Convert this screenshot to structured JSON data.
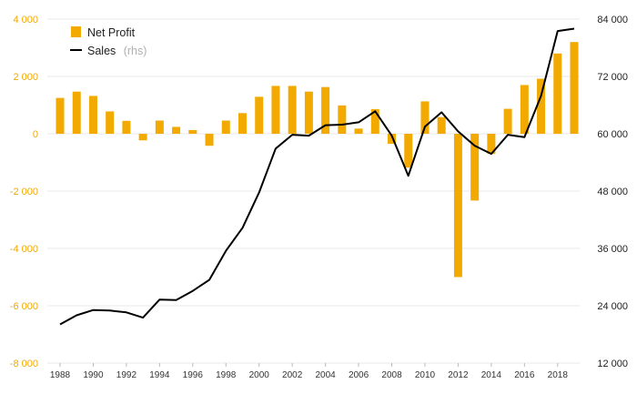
{
  "chart_data": {
    "type": "bar+line",
    "x": [
      1988,
      1989,
      1990,
      1991,
      1992,
      1993,
      1994,
      1995,
      1996,
      1997,
      1998,
      1999,
      2000,
      2001,
      2002,
      2003,
      2004,
      2005,
      2006,
      2007,
      2008,
      2009,
      2010,
      2011,
      2012,
      2013,
      2014,
      2015,
      2016,
      2017,
      2018,
      2019
    ],
    "x_tick_labels": [
      "1988",
      "1990",
      "1992",
      "1994",
      "1996",
      "1998",
      "2000",
      "2002",
      "2004",
      "2006",
      "2008",
      "2010",
      "2012",
      "2014",
      "2016",
      "2018"
    ],
    "y_left": {
      "ylim": [
        -8000,
        4000
      ],
      "ticks": [
        4000,
        2000,
        0,
        -2000,
        -4000,
        -6000,
        -8000
      ],
      "tick_labels": [
        "4 000",
        "2 000",
        "0",
        "-2 000",
        "-4 000",
        "-6 000",
        "-8 000"
      ],
      "color": "#f2a900"
    },
    "y_right": {
      "ylim": [
        12000,
        84000
      ],
      "ticks": [
        84000,
        72000,
        60000,
        48000,
        36000,
        24000,
        12000
      ],
      "tick_labels": [
        "84 000",
        "72 000",
        "60 000",
        "48 000",
        "36 000",
        "24 000",
        "12 000"
      ],
      "color": "#222222"
    },
    "series": [
      {
        "name": "Net Profit",
        "type": "bar",
        "axis": "left",
        "color": "#f2a900",
        "values": [
          1250,
          1470,
          1320,
          780,
          450,
          -230,
          460,
          240,
          130,
          -420,
          460,
          720,
          1290,
          1670,
          1670,
          1470,
          1630,
          990,
          180,
          860,
          -350,
          -1180,
          1130,
          580,
          -5000,
          -2330,
          -700,
          870,
          1700,
          1920,
          2800,
          3200
        ]
      },
      {
        "name": "Sales",
        "legend_suffix": "(rhs)",
        "type": "line",
        "axis": "right",
        "color": "#000000",
        "values": [
          20100,
          22000,
          23100,
          23000,
          22600,
          21500,
          25300,
          25200,
          27100,
          29400,
          35500,
          40300,
          47700,
          56900,
          59800,
          59600,
          61800,
          61900,
          62400,
          64700,
          59600,
          51200,
          61500,
          64500,
          60500,
          57500,
          55800,
          59800,
          59300,
          67900,
          81500,
          82000
        ]
      }
    ],
    "legend": {
      "placement": "top-left",
      "entries": [
        {
          "label": "Net Profit",
          "sub": ""
        },
        {
          "label": "Sales",
          "sub": "(rhs)"
        }
      ]
    },
    "grid": {
      "horizontal": true,
      "vertical": false,
      "color": "#e8e8e8"
    }
  }
}
